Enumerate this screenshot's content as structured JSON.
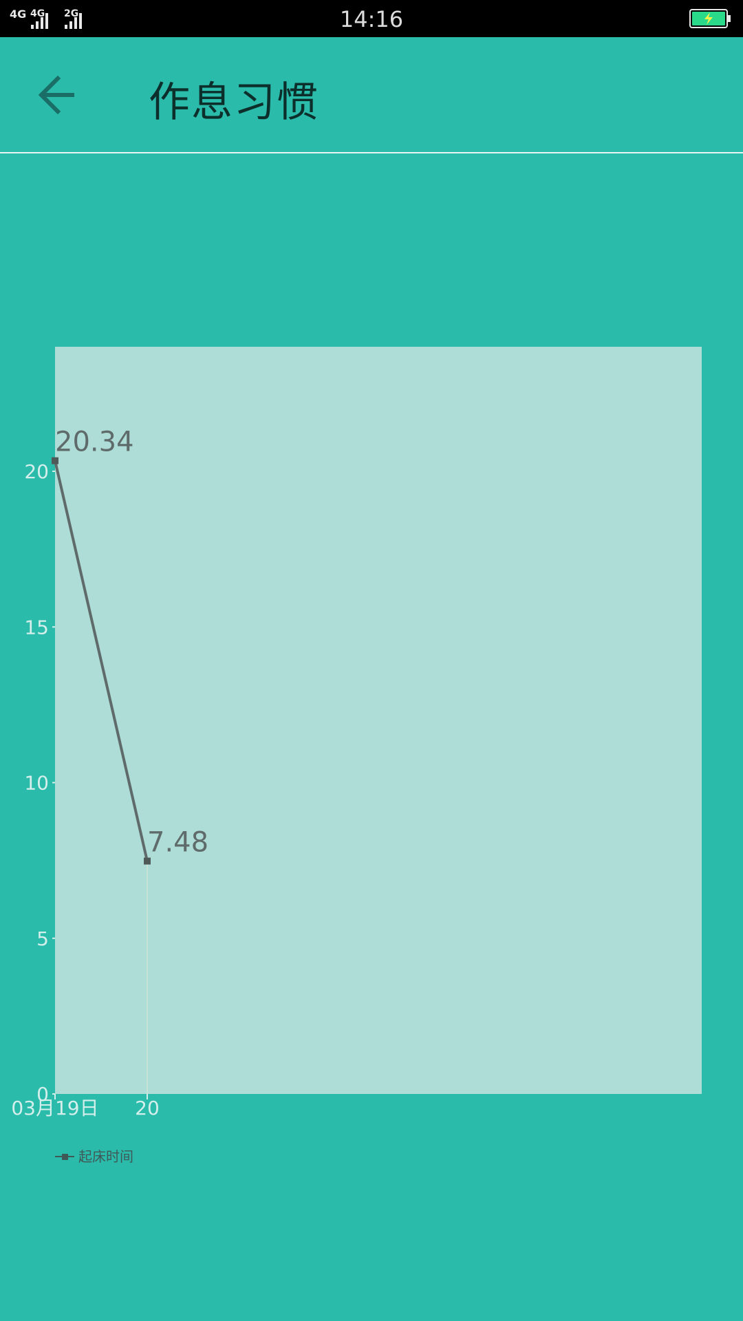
{
  "status_bar": {
    "network_1": "4G",
    "network_2": "4G",
    "network_3": "2G",
    "time": "14:16",
    "battery_icon": "battery-charging-icon"
  },
  "app_bar": {
    "back_icon": "arrow-left-icon",
    "title": "作息习惯"
  },
  "colors": {
    "background": "#2bbbab",
    "plot_area": "#aedcd6",
    "line": "#5f6b6a",
    "tick_text": "#d4efeb",
    "title_text": "#0c2f2b"
  },
  "chart_data": {
    "type": "line",
    "categories": [
      "03月19日",
      "20"
    ],
    "series": [
      {
        "name": "起床时间",
        "values": [
          20.34,
          7.48
        ]
      }
    ],
    "data_labels": [
      "20.34",
      "7.48"
    ],
    "yticks": [
      "0",
      "5",
      "10",
      "15",
      "20"
    ],
    "ylim": [
      0,
      24
    ],
    "grid": false,
    "legend_position": "bottom-left"
  }
}
